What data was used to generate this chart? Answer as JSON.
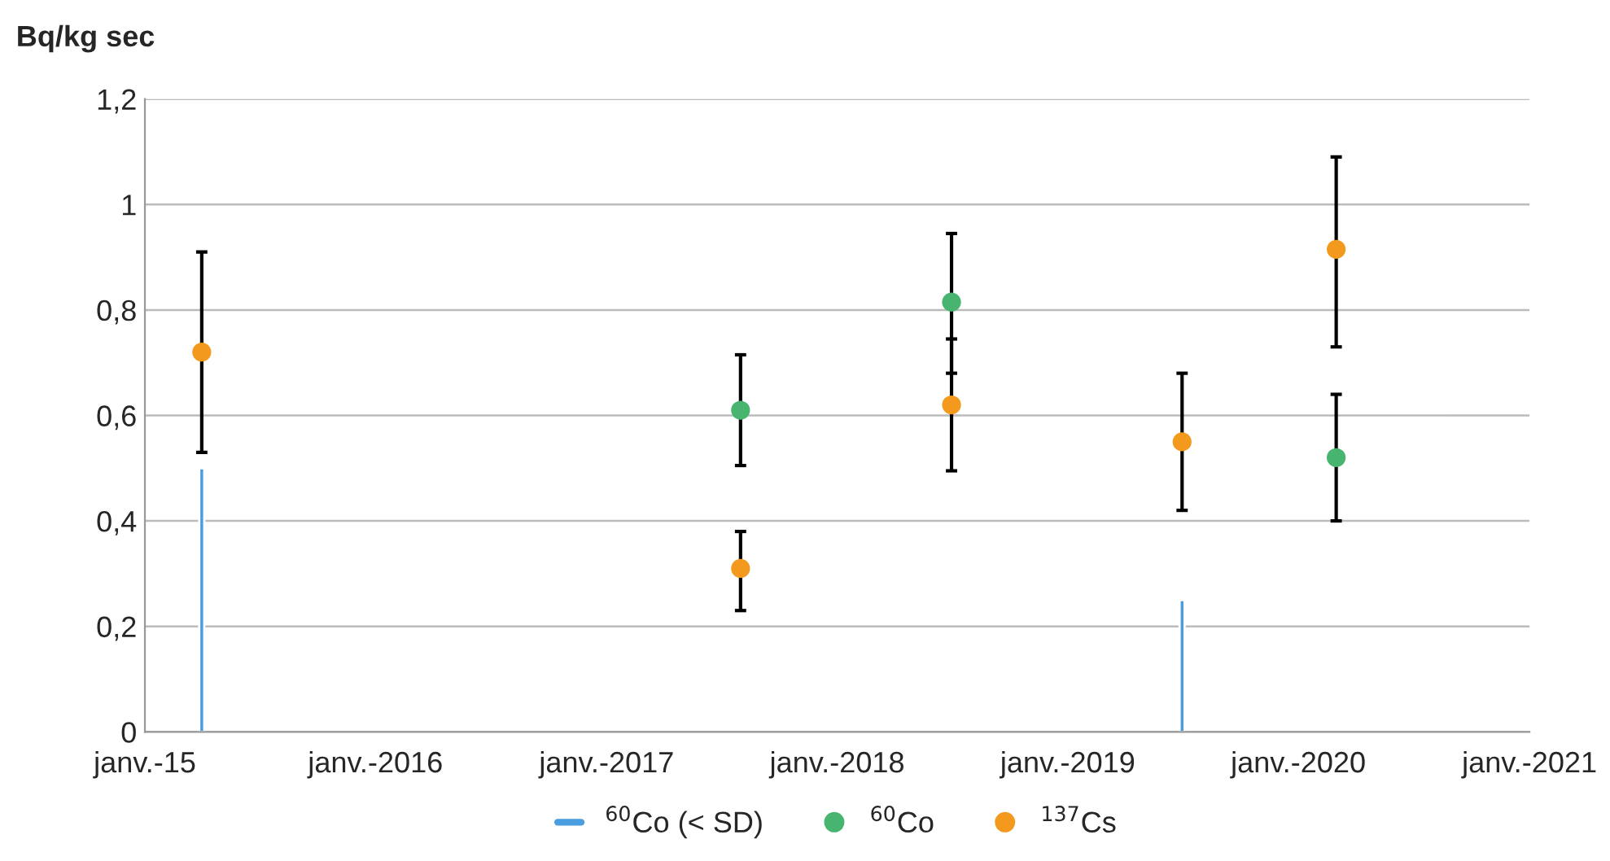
{
  "chart_data": {
    "type": "scatter",
    "ylabel": "Bq/kg sec",
    "xlim": [
      "2015-01",
      "2021-01"
    ],
    "xticks": [
      {
        "value": "2015-01",
        "label": "janv.-15"
      },
      {
        "value": "2016-01",
        "label": "janv.-2016"
      },
      {
        "value": "2017-01",
        "label": "janv.-2017"
      },
      {
        "value": "2018-01",
        "label": "janv.-2018"
      },
      {
        "value": "2019-01",
        "label": "janv.-2019"
      },
      {
        "value": "2020-01",
        "label": "janv.-2020"
      },
      {
        "value": "2021-01",
        "label": "janv.-2021"
      }
    ],
    "ylim": [
      0,
      1.2
    ],
    "yticks": [
      0,
      {
        "value": 0.2,
        "label": "0,2"
      },
      {
        "value": 0.4,
        "label": "0,4"
      },
      {
        "value": 0.6,
        "label": "0,6"
      },
      {
        "value": 0.8,
        "label": "0,8"
      },
      1,
      {
        "value": 1.2,
        "label": "1,2"
      }
    ],
    "grid": "y",
    "legend": "bottom",
    "marker": "circle",
    "series": [
      {
        "name": "$^{60}$Co (< SD)",
        "type": "bar",
        "color": "#4a9ee0",
        "x": [
          "2015-04",
          "2019-07"
        ],
        "values": [
          0.5,
          0.25
        ]
      },
      {
        "name": "$^{60}$Co",
        "color": "#47b56f",
        "x": [
          "2017-08",
          "2018-07",
          "2020-03"
        ],
        "values": [
          0.61,
          0.815,
          0.52
        ],
        "errors": [
          [
            0.505,
            0.715
          ],
          [
            0.68,
            0.945
          ],
          [
            0.4,
            0.64
          ]
        ]
      },
      {
        "name": "$^{137}$Cs",
        "color": "#f39a1e",
        "x": [
          "2015-04",
          "2017-08",
          "2018-07",
          "2019-07",
          "2020-03"
        ],
        "values": [
          0.72,
          0.31,
          0.62,
          0.55,
          0.915
        ],
        "errors": [
          [
            0.53,
            0.91
          ],
          [
            0.23,
            0.38
          ],
          [
            0.495,
            0.745
          ],
          [
            0.42,
            0.68
          ],
          [
            0.73,
            1.09
          ]
        ]
      }
    ]
  }
}
